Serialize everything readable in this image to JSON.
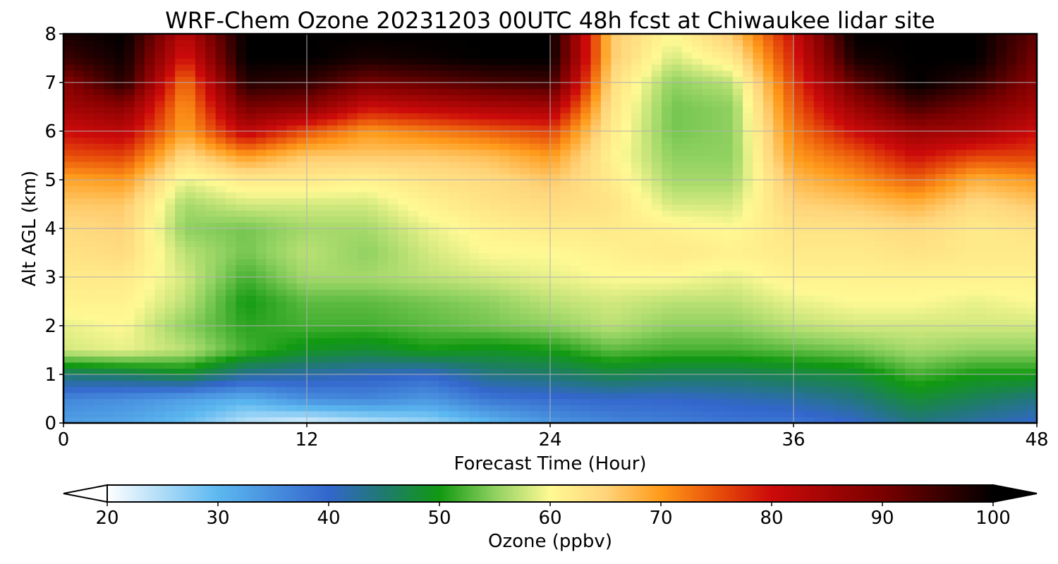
{
  "chart_data": {
    "type": "heatmap",
    "title": "WRF-Chem Ozone  20231203 00UTC 48h fcst at Chiwaukee lidar site",
    "xlabel": "Forecast Time (Hour)",
    "ylabel": "Alt AGL (km)",
    "xlim": [
      0,
      48
    ],
    "ylim": [
      0,
      8
    ],
    "xticks": [
      "0",
      "12",
      "24",
      "36",
      "48"
    ],
    "yticks": [
      "0",
      "1",
      "2",
      "3",
      "4",
      "5",
      "6",
      "7",
      "8"
    ],
    "grid": true,
    "colorbar": {
      "label": "Ozone  (ppbv)",
      "range": [
        20,
        100
      ],
      "ticks": [
        "20",
        "30",
        "40",
        "50",
        "60",
        "70",
        "80",
        "90",
        "100"
      ],
      "extend": "both",
      "stops": [
        {
          "value": 20,
          "color": "#ffffff"
        },
        {
          "value": 30,
          "color": "#5cb8f0"
        },
        {
          "value": 40,
          "color": "#3366cc"
        },
        {
          "value": 45,
          "color": "#1f7a6e"
        },
        {
          "value": 50,
          "color": "#119911"
        },
        {
          "value": 55,
          "color": "#8fd160"
        },
        {
          "value": 60,
          "color": "#fff994"
        },
        {
          "value": 65,
          "color": "#ffd47a"
        },
        {
          "value": 70,
          "color": "#ff9a1a"
        },
        {
          "value": 75,
          "color": "#e8500a"
        },
        {
          "value": 80,
          "color": "#cc0a0a"
        },
        {
          "value": 90,
          "color": "#7a0000"
        },
        {
          "value": 100,
          "color": "#000000"
        }
      ]
    },
    "altitudes_km": [
      0,
      0.5,
      1,
      1.5,
      2,
      2.5,
      3,
      3.5,
      4,
      4.5,
      5,
      5.5,
      6,
      6.5,
      7,
      7.5,
      8
    ],
    "hours": [
      0,
      3,
      6,
      9,
      12,
      15,
      18,
      21,
      24,
      27,
      30,
      33,
      36,
      39,
      42,
      45,
      48
    ],
    "ozone_ppbv_by_hour": [
      [
        33,
        36,
        45,
        58,
        59,
        61,
        62,
        63,
        64,
        66,
        69,
        75,
        80,
        85,
        88,
        95,
        98
      ],
      [
        32,
        35,
        46,
        59,
        60,
        61,
        62,
        64,
        65,
        66,
        70,
        76,
        82,
        88,
        97,
        99,
        100
      ],
      [
        29,
        33,
        48,
        57,
        55,
        57,
        58,
        57,
        55,
        56,
        59,
        64,
        69,
        70,
        72,
        78,
        82
      ],
      [
        24,
        31,
        43,
        52,
        51,
        50,
        52,
        54,
        54,
        58,
        62,
        70,
        82,
        90,
        97,
        100,
        100
      ],
      [
        22,
        35,
        42,
        49,
        52,
        53,
        56,
        57,
        56,
        58,
        62,
        66,
        75,
        88,
        96,
        100,
        100
      ],
      [
        24,
        36,
        41,
        48,
        52,
        53,
        56,
        55,
        56,
        58,
        61,
        66,
        70,
        80,
        90,
        98,
        100
      ],
      [
        26,
        34,
        40,
        50,
        53,
        54,
        57,
        58,
        59,
        61,
        63,
        66,
        72,
        82,
        92,
        99,
        100
      ],
      [
        30,
        38,
        44,
        49,
        54,
        55,
        58,
        60,
        61,
        63,
        64,
        67,
        74,
        84,
        94,
        100,
        100
      ],
      [
        34,
        39,
        45,
        50,
        55,
        57,
        59,
        60,
        62,
        64,
        66,
        70,
        76,
        85,
        95,
        100,
        100
      ],
      [
        36,
        40,
        47,
        53,
        57,
        58,
        60,
        61,
        62,
        63,
        62,
        61,
        62,
        63,
        64,
        66,
        66
      ],
      [
        37,
        40,
        46,
        52,
        55,
        57,
        60,
        62,
        61,
        58,
        56,
        55,
        54,
        54,
        55,
        58,
        60
      ],
      [
        38,
        41,
        46,
        52,
        55,
        57,
        59,
        61,
        60,
        58,
        56,
        55,
        55,
        55,
        57,
        62,
        66
      ],
      [
        38,
        42,
        47,
        53,
        57,
        59,
        61,
        62,
        63,
        65,
        67,
        70,
        72,
        74,
        76,
        78,
        80
      ],
      [
        40,
        44,
        48,
        54,
        58,
        60,
        61,
        62,
        63,
        66,
        70,
        74,
        80,
        86,
        92,
        98,
        100
      ],
      [
        44,
        48,
        52,
        56,
        58,
        60,
        61,
        63,
        64,
        68,
        74,
        80,
        86,
        94,
        100,
        100,
        100
      ],
      [
        42,
        46,
        50,
        55,
        58,
        59,
        61,
        62,
        62,
        64,
        68,
        76,
        85,
        90,
        96,
        100,
        100
      ],
      [
        40,
        44,
        50,
        55,
        58,
        60,
        61,
        62,
        63,
        66,
        70,
        76,
        80,
        85,
        88,
        90,
        92
      ]
    ]
  }
}
